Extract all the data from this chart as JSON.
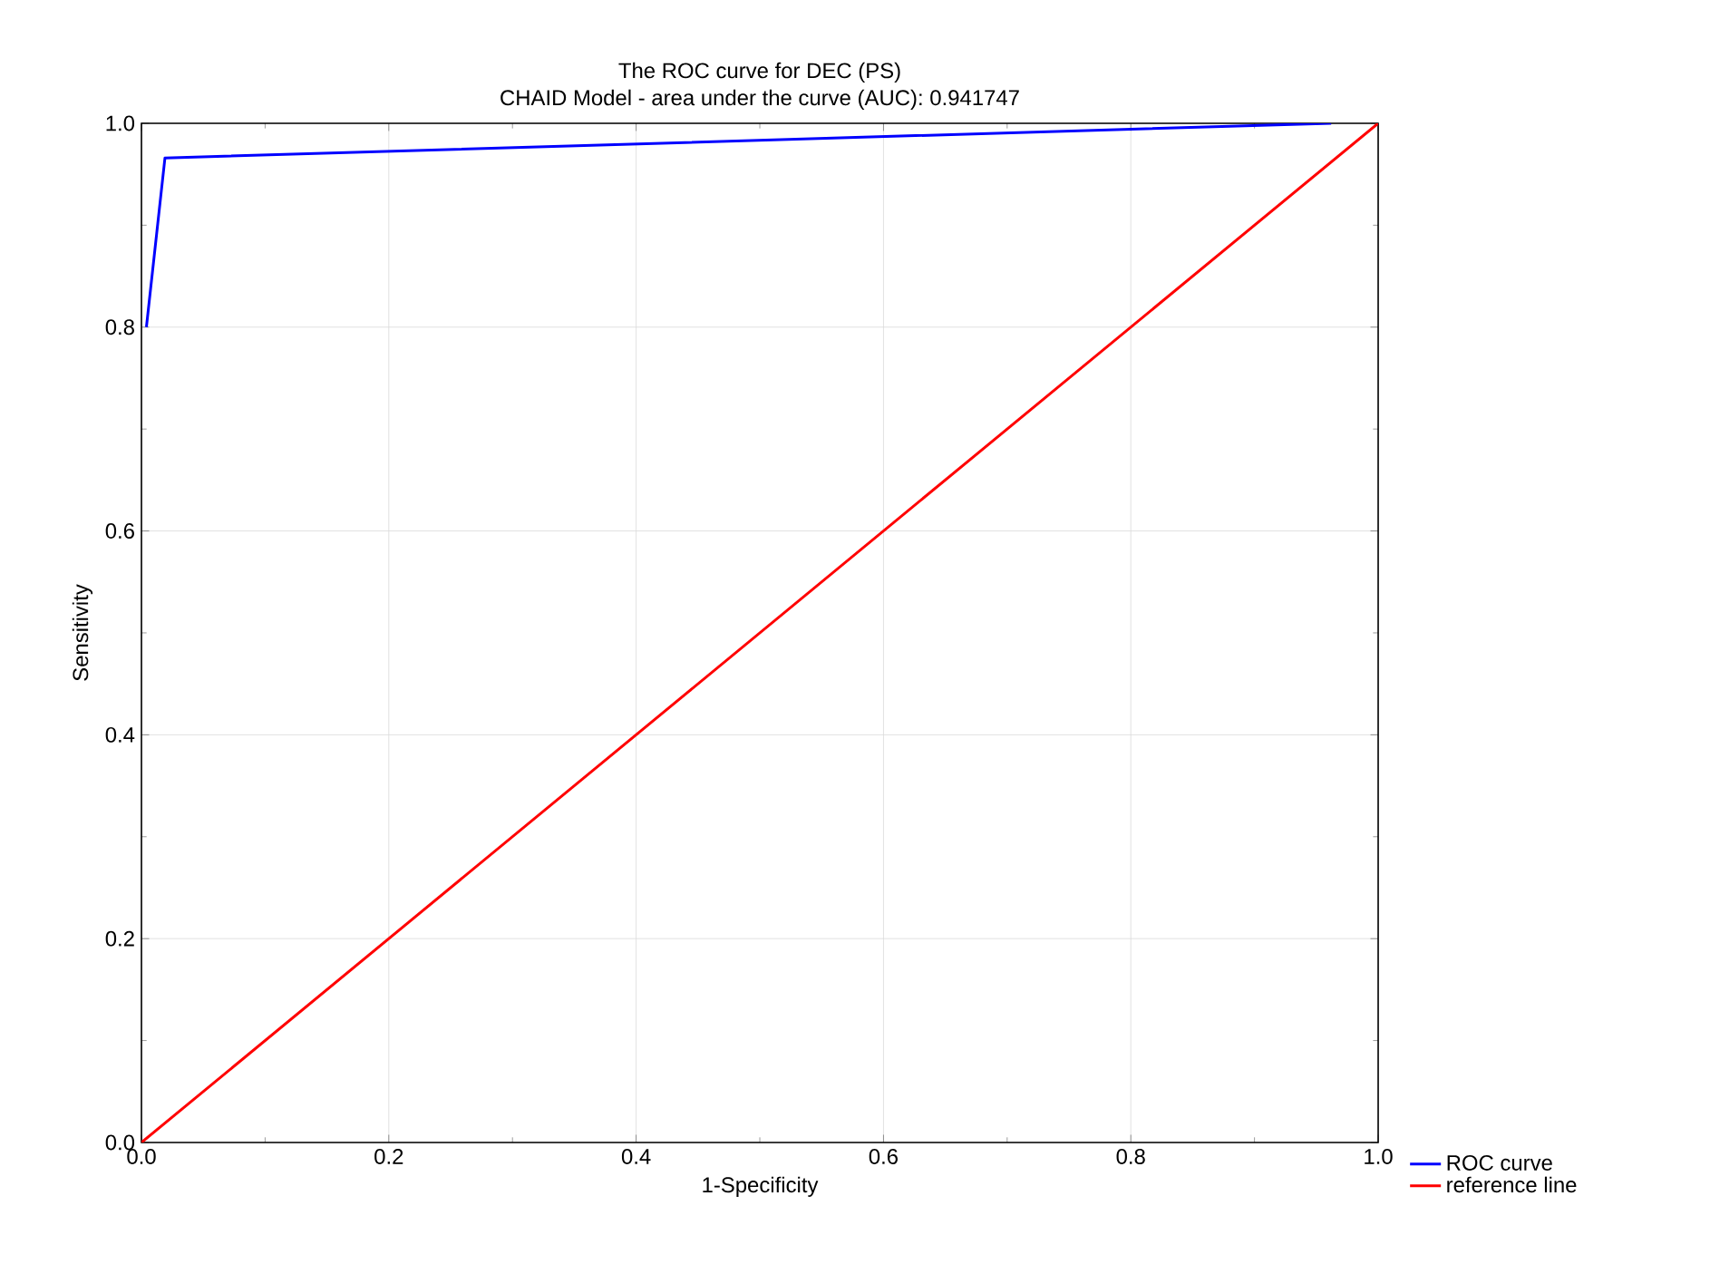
{
  "chart_data": {
    "type": "line",
    "title": "The ROC curve for DEC (PS)",
    "subtitle": "CHAID Model - area under the curve (AUC): 0.941747",
    "xlabel": "1-Specificity",
    "ylabel": "Sensitivity",
    "series": [
      {
        "name": "ROC curve",
        "color": "#0000ff",
        "x": [
          0.004,
          0.019,
          0.962
        ],
        "values": [
          0.8,
          0.966,
          1.0
        ]
      },
      {
        "name": "reference line",
        "color": "#ff0000",
        "x": [
          0,
          1
        ],
        "values": [
          0,
          1
        ]
      }
    ],
    "xlim": [
      0,
      1
    ],
    "ylim": [
      0,
      1
    ],
    "xticks": [
      {
        "value": 0,
        "label": "0.0"
      },
      0.2,
      0.4,
      0.6,
      0.8,
      {
        "value": 1,
        "label": "1.0"
      }
    ],
    "yticks": [
      {
        "value": 0,
        "label": "0.0"
      },
      0.2,
      0.4,
      0.6,
      0.8,
      {
        "value": 1,
        "label": "1.0"
      }
    ],
    "grid": true,
    "legend": "bottom right",
    "marker": "none",
    "line_style": "solid"
  }
}
